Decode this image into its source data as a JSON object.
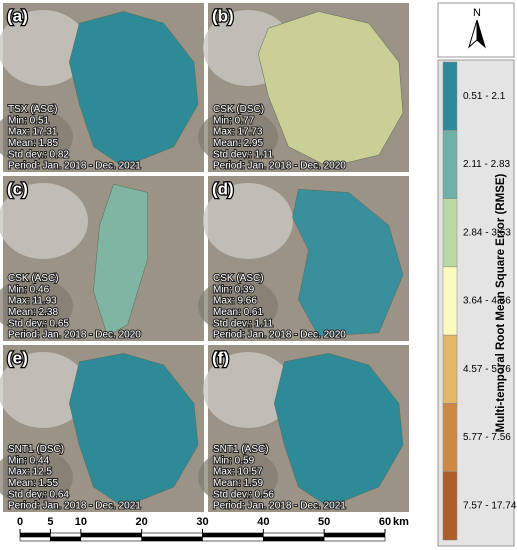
{
  "north": "N",
  "legend": {
    "title": "Multi-temporal Root Mean Square Error (RMSE)",
    "classes": [
      {
        "label": "0.51 - 2.1",
        "color": "#2f8a98"
      },
      {
        "label": "2.11 - 2.83",
        "color": "#6fb0a6"
      },
      {
        "label": "2.84 - 3.63",
        "color": "#b8d9a6"
      },
      {
        "label": "3.64 - 4.56",
        "color": "#fbfbbf"
      },
      {
        "label": "4.57 - 5.76",
        "color": "#e6b669"
      },
      {
        "label": "5.77 - 7.56",
        "color": "#cd8844"
      },
      {
        "label": "7.57 - 17.74",
        "color": "#ad5e2a"
      }
    ]
  },
  "panels": [
    {
      "label": "(a)",
      "title": "TSX (ASC)",
      "stats": [
        "Min: 0.51",
        "Max: 17.31",
        "Mean: 1.85",
        "Std dev.: 0.82"
      ],
      "period": "Period: Jan. 2018 - Dec. 2021"
    },
    {
      "label": "(b)",
      "title": "CSK (DSC)",
      "stats": [
        "Min: 0.77",
        "Max: 17.73",
        "Mean: 2.95",
        "Std dev.: 1.11"
      ],
      "period": "Period: Jan. 2018 - Dec. 2020"
    },
    {
      "label": "(c)",
      "title": "CSK (ASC)",
      "stats": [
        "Min: 0.46",
        "Max: 11.93",
        "Mean: 2.38",
        "Std dev.: 0.65"
      ],
      "period": "Period: Jan. 2018 - Dec. 2020"
    },
    {
      "label": "(d)",
      "title": "CSK (ASC)",
      "stats": [
        "Min: 0.39",
        "Max: 9.66",
        "Mean: 0.61",
        "Std dev.: 1.11"
      ],
      "period": "Period: Jan. 2018 - Dec. 2020"
    },
    {
      "label": "(e)",
      "title": "SNT1 (DSC)",
      "stats": [
        "Min: 0.44",
        "Max: 12.5",
        "Mean: 1.55",
        "Std dev.: 0.64"
      ],
      "period": "Period: Jan. 2018 - Dec. 2021"
    },
    {
      "label": "(f)",
      "title": "SNT1 (ASC)",
      "stats": [
        "Min: 0.59",
        "Max: 10.57",
        "Mean: 1.59",
        "Std dev.: 0.56"
      ],
      "period": "Period: Jan. 2018 - Dec. 2021"
    }
  ],
  "scale_bar": {
    "ticks": [
      0,
      5,
      10,
      20,
      30,
      40,
      50,
      60
    ],
    "unit": "km"
  }
}
